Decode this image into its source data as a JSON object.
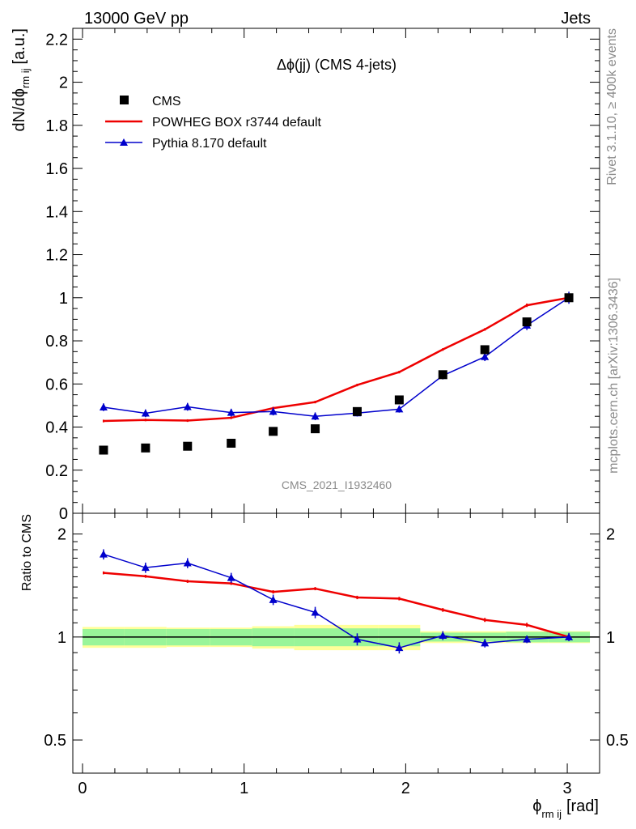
{
  "header": {
    "left": "13000 GeV pp",
    "right": "Jets"
  },
  "side_text": {
    "rivet": "Rivet 3.1.10, ≥ 400k events",
    "mcplots": "mcplots.cern.ch [arXiv:1306.3436]"
  },
  "colors": {
    "cms": "#000000",
    "powheg": "#ee0000",
    "pythia": "#0000cc",
    "band_inner": "#99f599",
    "band_outer": "#ffff99"
  },
  "chart_data": [
    {
      "type": "line",
      "title": "Δϕ(jj) (CMS 4-jets)",
      "ylabel": "dN/dϕ",
      "ylabel_sub": "rm ij",
      "ylabel_unit": "[a.u.]",
      "watermark": "CMS_2021_I1932460",
      "xlim": [
        -0.06,
        3.2
      ],
      "ylim": [
        0,
        2.25
      ],
      "yticks": [
        0,
        0.2,
        0.4,
        0.6,
        0.8,
        1,
        1.2,
        1.4,
        1.6,
        1.8,
        2,
        2.2
      ],
      "ytick_labels": [
        "0",
        "0.2",
        "0.4",
        "0.6",
        "0.8",
        "1",
        "1.2",
        "1.4",
        "1.6",
        "1.8",
        "2",
        "2.2"
      ],
      "legend_position": "top-left",
      "x": [
        0.13,
        0.39,
        0.65,
        0.92,
        1.18,
        1.44,
        1.7,
        1.96,
        2.23,
        2.49,
        2.75,
        3.01
      ],
      "x_edges": [
        0,
        0.26,
        0.52,
        0.79,
        1.05,
        1.31,
        1.57,
        1.83,
        2.09,
        2.36,
        2.62,
        2.88,
        3.14
      ],
      "series": [
        {
          "name": "CMS",
          "style": "marker",
          "values": [
            0.293,
            0.303,
            0.311,
            0.325,
            0.38,
            0.392,
            0.472,
            0.526,
            0.643,
            0.759,
            0.888,
            1.0
          ]
        },
        {
          "name": "POWHEG BOX r3744 default",
          "style": "line",
          "values": [
            0.428,
            0.433,
            0.43,
            0.443,
            0.488,
            0.516,
            0.595,
            0.655,
            0.76,
            0.853,
            0.965,
            1.0
          ],
          "errors": [
            0.006,
            0.006,
            0.006,
            0.006,
            0.006,
            0.006,
            0.006,
            0.006,
            0.006,
            0.006,
            0.008,
            0.008
          ]
        },
        {
          "name": "Pythia 8.170 default",
          "style": "line-triangle",
          "values": [
            0.492,
            0.464,
            0.494,
            0.467,
            0.472,
            0.45,
            0.465,
            0.483,
            0.639,
            0.726,
            0.872,
            1.0
          ],
          "errors": [
            0.018,
            0.018,
            0.018,
            0.018,
            0.018,
            0.018,
            0.016,
            0.016,
            0.018,
            0.02,
            0.022,
            0.028
          ]
        }
      ]
    },
    {
      "type": "line",
      "ylabel": "Ratio to CMS",
      "xlabel": "ϕ",
      "xlabel_sub": "rm ij",
      "xlabel_unit": "[rad]",
      "xlim": [
        -0.06,
        3.2
      ],
      "ylim": [
        0.4,
        2.3
      ],
      "scale": "log",
      "xticks": [
        0,
        1,
        2,
        3
      ],
      "xtick_labels": [
        "0",
        "1",
        "2",
        "3"
      ],
      "yticks": [
        0.5,
        1,
        2
      ],
      "ytick_labels": [
        "0.5",
        "1",
        "2"
      ],
      "x": [
        0.13,
        0.39,
        0.65,
        0.92,
        1.18,
        1.44,
        1.7,
        1.96,
        2.23,
        2.49,
        2.75,
        3.01
      ],
      "x_edges": [
        0,
        0.26,
        0.52,
        0.79,
        1.05,
        1.31,
        1.57,
        1.83,
        2.09,
        2.36,
        2.62,
        2.88,
        3.14
      ],
      "band_inner": [
        0.055,
        0.055,
        0.055,
        0.055,
        0.06,
        0.06,
        0.06,
        0.06,
        0.03,
        0.03,
        0.035,
        0.035
      ],
      "band_outer": [
        0.07,
        0.07,
        0.065,
        0.065,
        0.075,
        0.085,
        0.085,
        0.085,
        0.04,
        0.04,
        0.04,
        0.04
      ],
      "series": [
        {
          "name": "POWHEG BOX r3744 default",
          "values": [
            1.54,
            1.505,
            1.455,
            1.435,
            1.355,
            1.385,
            1.305,
            1.295,
            1.2,
            1.122,
            1.085,
            1.0
          ],
          "errors": [
            0.015,
            0.015,
            0.015,
            0.015,
            0.015,
            0.015,
            0.015,
            0.015,
            0.015,
            0.015,
            0.015,
            0.015
          ]
        },
        {
          "name": "Pythia 8.170 default",
          "values": [
            1.745,
            1.595,
            1.645,
            1.49,
            1.285,
            1.18,
            0.985,
            0.93,
            1.01,
            0.96,
            0.985,
            1.0
          ],
          "errors": [
            0.06,
            0.055,
            0.055,
            0.05,
            0.045,
            0.045,
            0.04,
            0.035,
            0.03,
            0.028,
            0.025,
            0.028
          ]
        }
      ]
    }
  ]
}
